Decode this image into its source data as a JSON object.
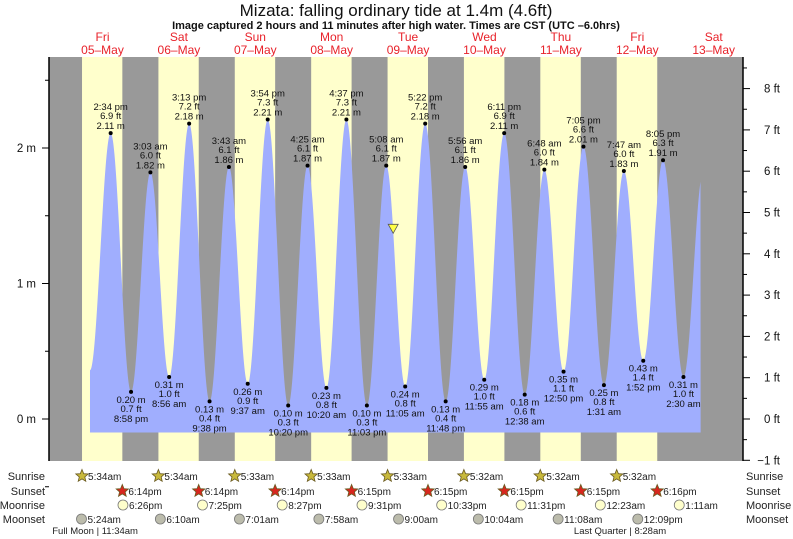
{
  "header": {
    "title": "Mizata: falling  ordinary tide at 1.4m (4.6ft)",
    "subtitle": "Image captured 2 hours and 11 minutes after high water. Times are CST (UTC –6.0hrs)"
  },
  "colors": {
    "night": "#999999",
    "day": "#ffffcc",
    "tide": "#a0aefe",
    "day_label": "#e8222a",
    "sunrise_star": "#c8b93c",
    "sunset_star": "#d8261e",
    "moonrise": "#ffffcc",
    "moonset": "#bcbcac",
    "current_marker": "#ffff44"
  },
  "chart_data": {
    "type": "area",
    "title": "Mizata: falling  ordinary tide at 1.4m (4.6ft)",
    "days": [
      {
        "dow": "Fri",
        "date": "05–May"
      },
      {
        "dow": "Sat",
        "date": "06–May"
      },
      {
        "dow": "Sun",
        "date": "07–May"
      },
      {
        "dow": "Mon",
        "date": "08–May"
      },
      {
        "dow": "Tue",
        "date": "09–May"
      },
      {
        "dow": "Wed",
        "date": "10–May"
      },
      {
        "dow": "Thu",
        "date": "11–May"
      },
      {
        "dow": "Fri",
        "date": "12–May"
      },
      {
        "dow": "Sat",
        "date": "13–May"
      }
    ],
    "y_left": {
      "unit": "m",
      "ticks": [
        "0 m",
        "1 m",
        "2 m"
      ],
      "range_m": [
        -0.31,
        2.67
      ]
    },
    "y_right": {
      "unit": "ft",
      "ticks": [
        "−1 ft",
        "0 ft",
        "1 ft",
        "2 ft",
        "3 ft",
        "4 ft",
        "5 ft",
        "6 ft",
        "7 ft",
        "8 ft"
      ]
    },
    "extremes": [
      {
        "day": 0,
        "time": "2:34 pm",
        "type": "high",
        "m": 2.11,
        "ft": "6.9 ft",
        "m_label": "2.11 m"
      },
      {
        "day": 0,
        "time": "8:58 pm",
        "type": "low",
        "m": 0.2,
        "ft": "0.7 ft",
        "m_label": "0.20 m"
      },
      {
        "day": 1,
        "time": "3:03 am",
        "type": "high",
        "m": 1.82,
        "ft": "6.0 ft",
        "m_label": "1.82 m"
      },
      {
        "day": 1,
        "time": "8:56 am",
        "type": "low",
        "m": 0.31,
        "ft": "1.0 ft",
        "m_label": "0.31 m"
      },
      {
        "day": 1,
        "time": "3:13 pm",
        "type": "high",
        "m": 2.18,
        "ft": "7.2 ft",
        "m_label": "2.18 m"
      },
      {
        "day": 1,
        "time": "9:38 pm",
        "type": "low",
        "m": 0.13,
        "ft": "0.4 ft",
        "m_label": "0.13 m"
      },
      {
        "day": 2,
        "time": "3:43 am",
        "type": "high",
        "m": 1.86,
        "ft": "6.1 ft",
        "m_label": "1.86 m"
      },
      {
        "day": 2,
        "time": "9:37 am",
        "type": "low",
        "m": 0.26,
        "ft": "0.9 ft",
        "m_label": "0.26 m"
      },
      {
        "day": 2,
        "time": "3:54 pm",
        "type": "high",
        "m": 2.21,
        "ft": "7.3 ft",
        "m_label": "2.21 m"
      },
      {
        "day": 2,
        "time": "10:20 pm",
        "type": "low",
        "m": 0.1,
        "ft": "0.3 ft",
        "m_label": "0.10 m"
      },
      {
        "day": 3,
        "time": "4:25 am",
        "type": "high",
        "m": 1.87,
        "ft": "6.1 ft",
        "m_label": "1.87 m"
      },
      {
        "day": 3,
        "time": "10:20 am",
        "type": "low",
        "m": 0.23,
        "ft": "0.8 ft",
        "m_label": "0.23 m"
      },
      {
        "day": 3,
        "time": "4:37 pm",
        "type": "high",
        "m": 2.21,
        "ft": "7.3 ft",
        "m_label": "2.21 m"
      },
      {
        "day": 3,
        "time": "11:03 pm",
        "type": "low",
        "m": 0.1,
        "ft": "0.3 ft",
        "m_label": "0.10 m"
      },
      {
        "day": 4,
        "time": "5:08 am",
        "type": "high",
        "m": 1.87,
        "ft": "6.1 ft",
        "m_label": "1.87 m"
      },
      {
        "day": 4,
        "time": "11:05 am",
        "type": "low",
        "m": 0.24,
        "ft": "0.8 ft",
        "m_label": "0.24 m"
      },
      {
        "day": 4,
        "time": "5:22 pm",
        "type": "high",
        "m": 2.18,
        "ft": "7.2 ft",
        "m_label": "2.18 m"
      },
      {
        "day": 4,
        "time": "11:48 pm",
        "type": "low",
        "m": 0.13,
        "ft": "0.4 ft",
        "m_label": "0.13 m"
      },
      {
        "day": 5,
        "time": "5:56 am",
        "type": "high",
        "m": 1.86,
        "ft": "6.1 ft",
        "m_label": "1.86 m"
      },
      {
        "day": 5,
        "time": "11:55 am",
        "type": "low",
        "m": 0.29,
        "ft": "1.0 ft",
        "m_label": "0.29 m"
      },
      {
        "day": 5,
        "time": "6:11 pm",
        "type": "high",
        "m": 2.11,
        "ft": "6.9 ft",
        "m_label": "2.11 m"
      },
      {
        "day": 6,
        "time": "12:38 am",
        "type": "low",
        "m": 0.18,
        "ft": "0.6 ft",
        "m_label": "0.18 m"
      },
      {
        "day": 6,
        "time": "6:48 am",
        "type": "high",
        "m": 1.84,
        "ft": "6.0 ft",
        "m_label": "1.84 m"
      },
      {
        "day": 6,
        "time": "12:50 pm",
        "type": "low",
        "m": 0.35,
        "ft": "1.1 ft",
        "m_label": "0.35 m"
      },
      {
        "day": 6,
        "time": "7:05 pm",
        "type": "high",
        "m": 2.01,
        "ft": "6.6 ft",
        "m_label": "2.01 m"
      },
      {
        "day": 7,
        "time": "1:31 am",
        "type": "low",
        "m": 0.25,
        "ft": "0.8 ft",
        "m_label": "0.25 m"
      },
      {
        "day": 7,
        "time": "7:47 am",
        "type": "high",
        "m": 1.83,
        "ft": "6.0 ft",
        "m_label": "1.83 m"
      },
      {
        "day": 7,
        "time": "1:52 pm",
        "type": "low",
        "m": 0.43,
        "ft": "1.4 ft",
        "m_label": "0.43 m"
      },
      {
        "day": 7,
        "time": "8:05 pm",
        "type": "high",
        "m": 1.91,
        "ft": "6.3 ft",
        "m_label": "1.91 m"
      },
      {
        "day": 8,
        "time": "2:30 am",
        "type": "low",
        "m": 0.31,
        "ft": "1.0 ft",
        "m_label": "0.31 m"
      }
    ],
    "current": {
      "day": 4,
      "time": "7:19 am",
      "m": 1.4
    }
  },
  "almanac": {
    "row_labels": {
      "sunrise": "Sunrise",
      "sunset": "Sunset",
      "moonrise": "Moonrise",
      "moonset": "Moonset"
    },
    "sunrise": [
      {
        "day": 0,
        "time": "5:34am"
      },
      {
        "day": 1,
        "time": "5:34am"
      },
      {
        "day": 2,
        "time": "5:33am"
      },
      {
        "day": 3,
        "time": "5:33am"
      },
      {
        "day": 4,
        "time": "5:33am"
      },
      {
        "day": 5,
        "time": "5:32am"
      },
      {
        "day": 6,
        "time": "5:32am"
      },
      {
        "day": 7,
        "time": "5:32am"
      }
    ],
    "sunset": [
      {
        "day": 0,
        "time": "6:14pm"
      },
      {
        "day": 1,
        "time": "6:14pm"
      },
      {
        "day": 2,
        "time": "6:14pm"
      },
      {
        "day": 3,
        "time": "6:15pm"
      },
      {
        "day": 4,
        "time": "6:15pm"
      },
      {
        "day": 5,
        "time": "6:15pm"
      },
      {
        "day": 6,
        "time": "6:15pm"
      },
      {
        "day": 7,
        "time": "6:16pm"
      }
    ],
    "moonrise": [
      {
        "day": 0,
        "time": "6:26pm"
      },
      {
        "day": 1,
        "time": "7:25pm"
      },
      {
        "day": 2,
        "time": "8:27pm"
      },
      {
        "day": 3,
        "time": "9:31pm"
      },
      {
        "day": 4,
        "time": "10:33pm"
      },
      {
        "day": 5,
        "time": "11:31pm"
      },
      {
        "day": 7,
        "time": "12:23am"
      },
      {
        "day": 8,
        "time": "1:11am"
      }
    ],
    "moonset": [
      {
        "day": 0,
        "time": "5:24am"
      },
      {
        "day": 1,
        "time": "6:10am"
      },
      {
        "day": 2,
        "time": "7:01am"
      },
      {
        "day": 3,
        "time": "7:58am"
      },
      {
        "day": 4,
        "time": "9:00am"
      },
      {
        "day": 5,
        "time": "10:04am"
      },
      {
        "day": 6,
        "time": "11:08am"
      },
      {
        "day": 7,
        "time": "12:09pm"
      }
    ],
    "phases": [
      {
        "day": 0,
        "time": "11:34am",
        "label": "Full Moon | 11:34am"
      },
      {
        "day": 7,
        "time": "8:28am",
        "label": "Last Quarter | 8:28am"
      }
    ]
  }
}
